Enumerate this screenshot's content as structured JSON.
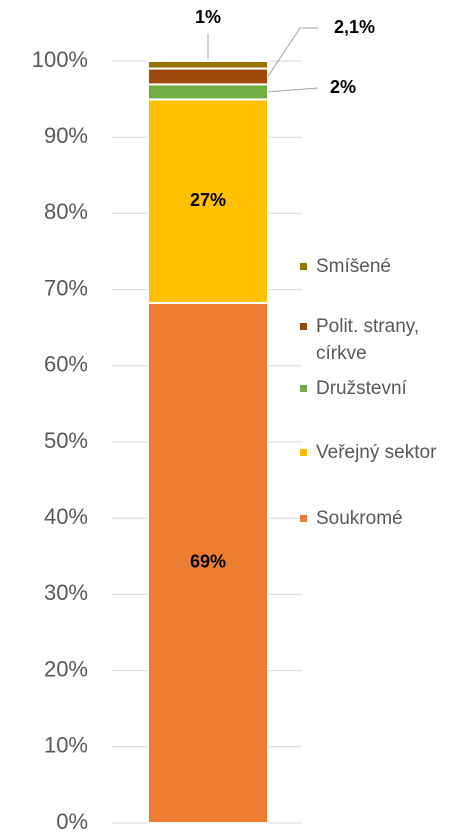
{
  "chart_data": {
    "type": "bar",
    "stacking": "percent",
    "categories": [
      null
    ],
    "series": [
      {
        "name": "Soukromé",
        "color": "#ed7d31",
        "values": [
          69
        ],
        "value_labels": [
          "69%"
        ]
      },
      {
        "name": "Veřejný sektor",
        "color": "#ffc000",
        "values": [
          27
        ],
        "value_labels": [
          "27%"
        ]
      },
      {
        "name": "Družstevní",
        "color": "#70ad47",
        "values": [
          2
        ],
        "value_labels": [
          "2%"
        ]
      },
      {
        "name": "Polit. strany, církve",
        "color": "#9e480e",
        "values": [
          2.1
        ],
        "value_labels": [
          "2,1%"
        ]
      },
      {
        "name": "Smíšené",
        "color": "#997300",
        "values": [
          1
        ],
        "value_labels": [
          "1%"
        ]
      }
    ],
    "ylim": [
      0,
      100
    ],
    "yticks": [
      {
        "value": 0,
        "label": "0%"
      },
      {
        "value": 10,
        "label": "10%"
      },
      {
        "value": 20,
        "label": "20%"
      },
      {
        "value": 30,
        "label": "30%"
      },
      {
        "value": 40,
        "label": "40%"
      },
      {
        "value": 50,
        "label": "50%"
      },
      {
        "value": 60,
        "label": "60%"
      },
      {
        "value": 70,
        "label": "70%"
      },
      {
        "value": 80,
        "label": "80%"
      },
      {
        "value": 90,
        "label": "90%"
      },
      {
        "value": 100,
        "label": "100%"
      }
    ],
    "grid": true,
    "legend": "right"
  }
}
